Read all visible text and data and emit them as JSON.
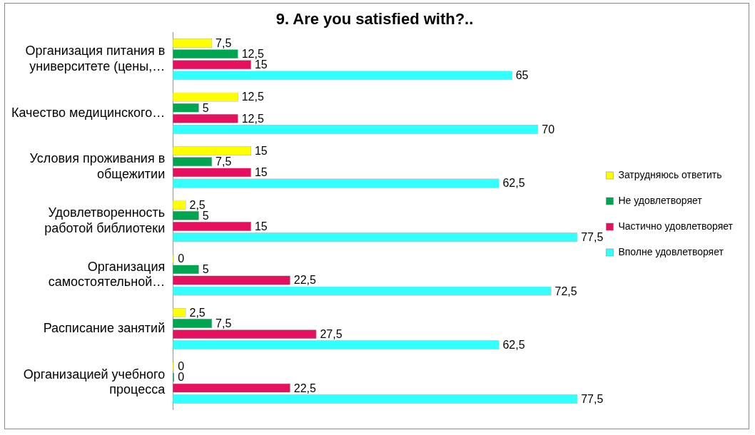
{
  "chart_data": {
    "type": "bar",
    "orientation": "horizontal",
    "title": "9. Are you satisfied with?..",
    "categories": [
      "Организация питания в университете (цены,…",
      "Качество медицинского…",
      "Условия проживания в общежитии",
      "Удовлетворенность работой библиотеки",
      "Организация самостоятельной…",
      "Расписание занятий",
      "Организацией учебного процесса"
    ],
    "series": [
      {
        "name": "Затрудняюсь ответить",
        "color": "#ffff00",
        "values": [
          7.5,
          12.5,
          15,
          2.5,
          0,
          2.5,
          0
        ],
        "value_labels": [
          "7,5",
          "12,5",
          "15",
          "2,5",
          "0",
          "2,5",
          "0"
        ]
      },
      {
        "name": "Не удовлетворяет",
        "color": "#00a550",
        "values": [
          12.5,
          5,
          7.5,
          5,
          5,
          7.5,
          0
        ],
        "value_labels": [
          "12,5",
          "5",
          "7,5",
          "5",
          "5",
          "7,5",
          "0"
        ]
      },
      {
        "name": "Частично удовлетворяет",
        "color": "#e6115e",
        "values": [
          15,
          12.5,
          15,
          15,
          22.5,
          27.5,
          22.5
        ],
        "value_labels": [
          "15",
          "12,5",
          "15",
          "15",
          "22,5",
          "27,5",
          "22,5"
        ]
      },
      {
        "name": "Вполне удовлетворяет",
        "color": "#33ffff",
        "values": [
          65,
          70,
          62.5,
          77.5,
          72.5,
          62.5,
          77.5
        ],
        "value_labels": [
          "65",
          "70",
          "62,5",
          "77,5",
          "72,5",
          "62,5",
          "77,5"
        ]
      }
    ],
    "legend": "right",
    "grid": false
  }
}
